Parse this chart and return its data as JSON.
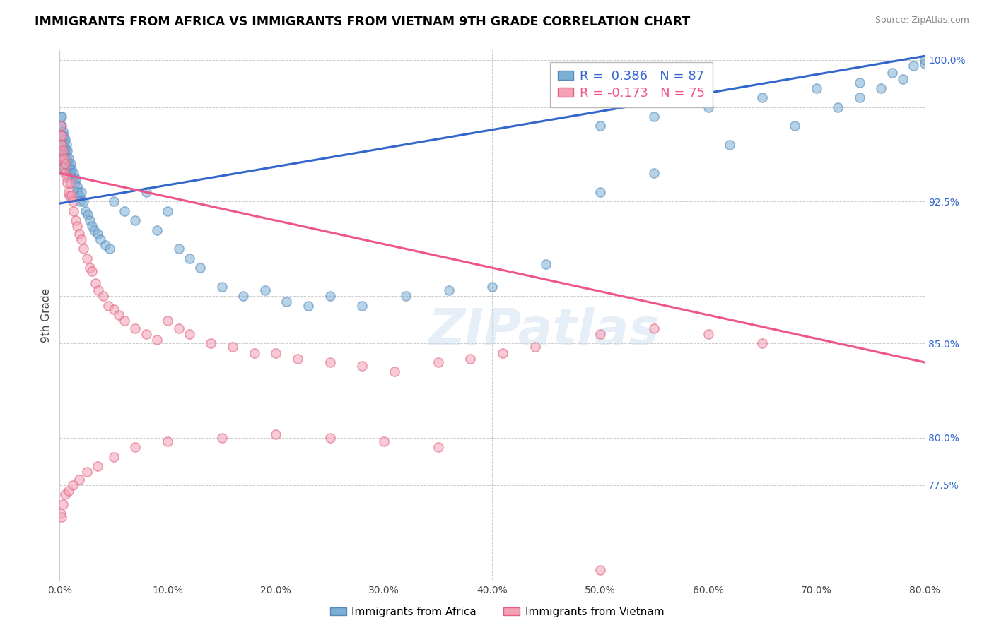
{
  "title": "IMMIGRANTS FROM AFRICA VS IMMIGRANTS FROM VIETNAM 9TH GRADE CORRELATION CHART",
  "source": "Source: ZipAtlas.com",
  "ylabel": "9th Grade",
  "xlim": [
    0.0,
    0.8
  ],
  "ylim": [
    0.725,
    1.005
  ],
  "africa_color": "#7bafd4",
  "africa_edge_color": "#5588bb",
  "vietnam_color": "#f4a0b5",
  "vietnam_edge_color": "#e06080",
  "trendline_africa_color": "#3366cc",
  "trendline_vietnam_color": "#ee5588",
  "africa_R": 0.386,
  "africa_N": 87,
  "vietnam_R": -0.173,
  "vietnam_N": 75,
  "legend_africa": "Immigrants from Africa",
  "legend_vietnam": "Immigrants from Vietnam",
  "watermark": "ZIPatlas",
  "ytick_vals": [
    0.775,
    0.8,
    0.825,
    0.85,
    0.875,
    0.9,
    0.925,
    0.95,
    0.975,
    1.0
  ],
  "ytick_labels_show": {
    "0.775": "77.5%",
    "0.800": "80.0%",
    "0.825": "",
    "0.850": "85.0%",
    "0.875": "",
    "0.900": "",
    "0.925": "92.5%",
    "0.950": "",
    "0.975": "",
    "1.000": "100.0%"
  },
  "africa_trendline_x": [
    0.0,
    0.8
  ],
  "africa_trendline_y": [
    0.924,
    1.002
  ],
  "vietnam_trendline_x": [
    0.0,
    0.8
  ],
  "vietnam_trendline_y": [
    0.94,
    0.84
  ],
  "africa_scatter_x": [
    0.001,
    0.001,
    0.001,
    0.001,
    0.001,
    0.001,
    0.001,
    0.001,
    0.002,
    0.002,
    0.002,
    0.002,
    0.003,
    0.003,
    0.003,
    0.004,
    0.004,
    0.004,
    0.005,
    0.005,
    0.006,
    0.006,
    0.007,
    0.007,
    0.008,
    0.008,
    0.009,
    0.01,
    0.01,
    0.011,
    0.012,
    0.013,
    0.014,
    0.015,
    0.016,
    0.017,
    0.018,
    0.019,
    0.02,
    0.022,
    0.024,
    0.026,
    0.028,
    0.03,
    0.032,
    0.035,
    0.038,
    0.042,
    0.046,
    0.05,
    0.06,
    0.07,
    0.08,
    0.09,
    0.1,
    0.11,
    0.12,
    0.13,
    0.15,
    0.17,
    0.19,
    0.21,
    0.23,
    0.25,
    0.28,
    0.32,
    0.36,
    0.4,
    0.45,
    0.5,
    0.55,
    0.62,
    0.68,
    0.72,
    0.74,
    0.76,
    0.78,
    0.8,
    0.8,
    0.79,
    0.77,
    0.74,
    0.7,
    0.65,
    0.6,
    0.55,
    0.5
  ],
  "africa_scatter_y": [
    0.97,
    0.965,
    0.96,
    0.955,
    0.952,
    0.948,
    0.945,
    0.942,
    0.97,
    0.965,
    0.96,
    0.955,
    0.962,
    0.958,
    0.954,
    0.96,
    0.955,
    0.95,
    0.958,
    0.953,
    0.955,
    0.95,
    0.952,
    0.947,
    0.948,
    0.943,
    0.944,
    0.945,
    0.94,
    0.942,
    0.938,
    0.94,
    0.935,
    0.937,
    0.933,
    0.93,
    0.928,
    0.925,
    0.93,
    0.925,
    0.92,
    0.918,
    0.915,
    0.912,
    0.91,
    0.908,
    0.905,
    0.902,
    0.9,
    0.925,
    0.92,
    0.915,
    0.93,
    0.91,
    0.92,
    0.9,
    0.895,
    0.89,
    0.88,
    0.875,
    0.878,
    0.872,
    0.87,
    0.875,
    0.87,
    0.875,
    0.878,
    0.88,
    0.892,
    0.93,
    0.94,
    0.955,
    0.965,
    0.975,
    0.98,
    0.985,
    0.99,
    0.998,
    1.0,
    0.997,
    0.993,
    0.988,
    0.985,
    0.98,
    0.975,
    0.97,
    0.965
  ],
  "vietnam_scatter_x": [
    0.001,
    0.001,
    0.001,
    0.002,
    0.002,
    0.002,
    0.003,
    0.003,
    0.004,
    0.004,
    0.005,
    0.005,
    0.006,
    0.007,
    0.008,
    0.009,
    0.01,
    0.011,
    0.012,
    0.013,
    0.015,
    0.016,
    0.018,
    0.02,
    0.022,
    0.025,
    0.028,
    0.03,
    0.033,
    0.036,
    0.04,
    0.045,
    0.05,
    0.055,
    0.06,
    0.07,
    0.08,
    0.09,
    0.1,
    0.11,
    0.12,
    0.14,
    0.16,
    0.18,
    0.2,
    0.22,
    0.25,
    0.28,
    0.31,
    0.35,
    0.38,
    0.41,
    0.44,
    0.5,
    0.55,
    0.6,
    0.65,
    0.001,
    0.002,
    0.003,
    0.005,
    0.008,
    0.012,
    0.018,
    0.025,
    0.035,
    0.05,
    0.07,
    0.1,
    0.15,
    0.2,
    0.25,
    0.3,
    0.35,
    0.5
  ],
  "vietnam_scatter_y": [
    0.965,
    0.96,
    0.955,
    0.96,
    0.955,
    0.95,
    0.952,
    0.947,
    0.948,
    0.943,
    0.945,
    0.94,
    0.938,
    0.935,
    0.93,
    0.928,
    0.935,
    0.928,
    0.925,
    0.92,
    0.915,
    0.912,
    0.908,
    0.905,
    0.9,
    0.895,
    0.89,
    0.888,
    0.882,
    0.878,
    0.875,
    0.87,
    0.868,
    0.865,
    0.862,
    0.858,
    0.855,
    0.852,
    0.862,
    0.858,
    0.855,
    0.85,
    0.848,
    0.845,
    0.845,
    0.842,
    0.84,
    0.838,
    0.835,
    0.84,
    0.842,
    0.845,
    0.848,
    0.855,
    0.858,
    0.855,
    0.85,
    0.76,
    0.758,
    0.765,
    0.77,
    0.772,
    0.775,
    0.778,
    0.782,
    0.785,
    0.79,
    0.795,
    0.798,
    0.8,
    0.802,
    0.8,
    0.798,
    0.795,
    0.73
  ]
}
